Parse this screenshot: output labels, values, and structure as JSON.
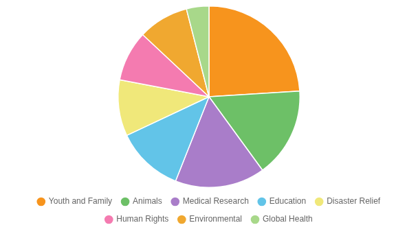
{
  "chart_data": {
    "type": "pie",
    "categories": [
      "Youth and Family",
      "Animals",
      "Medical Research",
      "Education",
      "Disaster Relief",
      "Human Rights",
      "Environmental",
      "Global Health"
    ],
    "values": [
      24,
      16,
      16,
      12,
      10,
      9,
      9,
      4
    ],
    "colors": [
      "#F7941D",
      "#6DC067",
      "#A97DC9",
      "#62C4E8",
      "#F0E87A",
      "#F47BB0",
      "#F0A830",
      "#A8D88A"
    ],
    "legend": "bottom"
  }
}
